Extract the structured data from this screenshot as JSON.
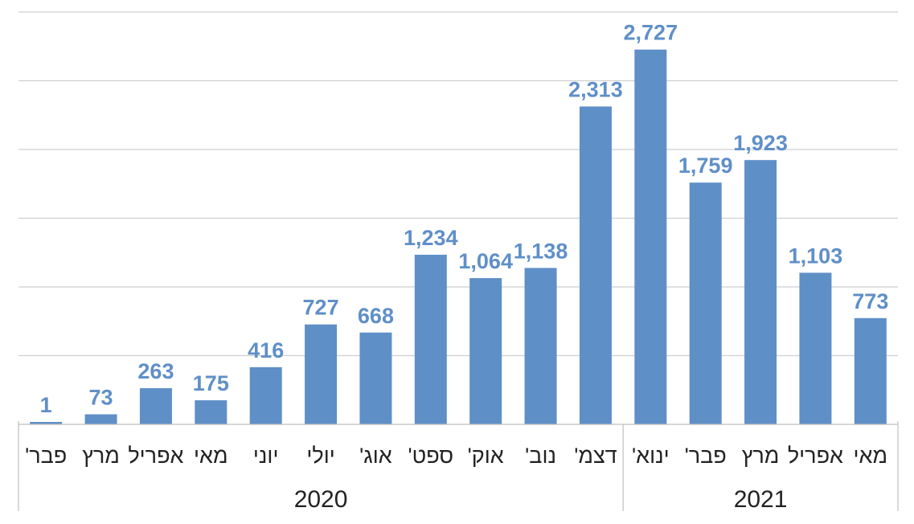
{
  "chart_data": {
    "type": "bar",
    "title": "",
    "xlabel": "",
    "ylabel": "",
    "categories": [
      "פבר'",
      "מרץ",
      "אפריל",
      "מאי",
      "יוני",
      "יולי",
      "אוג'",
      "ספט'",
      "אוק'",
      "נוב'",
      "דצמ'",
      "ינוא'",
      "פבר'",
      "מרץ",
      "אפריל",
      "מאי"
    ],
    "groups": [
      {
        "label": "2020",
        "count": 11
      },
      {
        "label": "2021",
        "count": 5
      }
    ],
    "values": [
      1,
      73,
      263,
      175,
      416,
      727,
      668,
      1234,
      1064,
      1138,
      2313,
      2727,
      1759,
      1923,
      1103,
      773
    ],
    "value_labels": [
      "1",
      "73",
      "263",
      "175",
      "416",
      "727",
      "668",
      "1,234",
      "1,064",
      "1,138",
      "2,313",
      "2,727",
      "1,759",
      "1,923",
      "1,103",
      "773"
    ],
    "ylim": [
      0,
      3000
    ],
    "ytick_step": 500,
    "grid": true,
    "legend": "none",
    "bar_color": "#5f8fc7"
  }
}
